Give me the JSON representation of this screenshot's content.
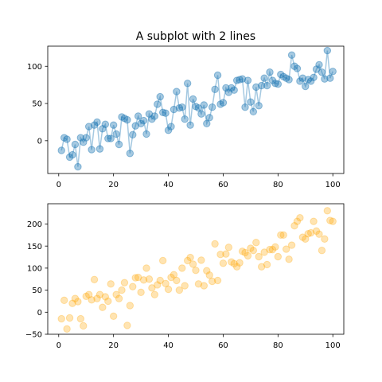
{
  "chart_data": [
    {
      "type": "line",
      "title": "A subplot with 2 lines",
      "xlabel": "",
      "ylabel": "",
      "xlim": [
        -4,
        104
      ],
      "ylim": [
        -44,
        127
      ],
      "xticks": [
        0,
        20,
        40,
        60,
        80,
        100
      ],
      "yticks": [
        0,
        50,
        100
      ],
      "grid": false,
      "color": "#1f77b4",
      "marker": "circle",
      "x": [
        1,
        2,
        3,
        4,
        5,
        6,
        7,
        8,
        9,
        10,
        11,
        12,
        13,
        14,
        15,
        16,
        17,
        18,
        19,
        20,
        21,
        22,
        23,
        24,
        25,
        26,
        27,
        28,
        29,
        30,
        31,
        32,
        33,
        34,
        35,
        36,
        37,
        38,
        39,
        40,
        41,
        42,
        43,
        44,
        45,
        46,
        47,
        48,
        49,
        50,
        51,
        52,
        53,
        54,
        55,
        56,
        57,
        58,
        59,
        60,
        61,
        62,
        63,
        64,
        65,
        66,
        67,
        68,
        69,
        70,
        71,
        72,
        73,
        74,
        75,
        76,
        77,
        78,
        79,
        80,
        81,
        82,
        83,
        84,
        85,
        86,
        87,
        88,
        89,
        90,
        91,
        92,
        93,
        94,
        95,
        96,
        97,
        98,
        99,
        100
      ],
      "y": [
        -13,
        4,
        2,
        -22,
        -19,
        -5,
        -35,
        4,
        -2,
        4,
        19,
        -12,
        21,
        25,
        -11,
        16,
        22,
        3,
        3,
        21,
        9,
        -5,
        32,
        30,
        28,
        -17,
        8,
        20,
        33,
        23,
        27,
        9,
        36,
        29,
        33,
        49,
        59,
        38,
        37,
        14,
        19,
        42,
        66,
        44,
        45,
        29,
        77,
        21,
        56,
        46,
        44,
        36,
        48,
        23,
        31,
        45,
        69,
        88,
        49,
        51,
        71,
        65,
        71,
        68,
        81,
        82,
        83,
        45,
        81,
        52,
        39,
        72,
        47,
        74,
        84,
        74,
        92,
        81,
        77,
        76,
        89,
        86,
        84,
        82,
        115,
        100,
        97,
        80,
        84,
        73,
        82,
        80,
        85,
        96,
        102,
        92,
        83,
        121,
        84,
        93
      ]
    },
    {
      "type": "scatter",
      "title": "",
      "xlabel": "",
      "ylabel": "",
      "xlim": [
        -4,
        104
      ],
      "ylim": [
        -50,
        246
      ],
      "xticks": [
        0,
        20,
        40,
        60,
        80,
        100
      ],
      "yticks": [
        -50,
        0,
        50,
        100,
        150,
        200
      ],
      "grid": false,
      "color": "#ffa500",
      "marker": "circle",
      "x": [
        1,
        2,
        3,
        4,
        5,
        6,
        7,
        8,
        9,
        10,
        11,
        12,
        13,
        14,
        15,
        16,
        17,
        18,
        19,
        20,
        21,
        22,
        23,
        24,
        25,
        26,
        27,
        28,
        29,
        30,
        31,
        32,
        33,
        34,
        35,
        36,
        37,
        38,
        39,
        40,
        41,
        42,
        43,
        44,
        45,
        46,
        47,
        48,
        49,
        50,
        51,
        52,
        53,
        54,
        55,
        56,
        57,
        58,
        59,
        60,
        61,
        62,
        63,
        64,
        65,
        66,
        67,
        68,
        69,
        70,
        71,
        72,
        73,
        74,
        75,
        76,
        77,
        78,
        79,
        80,
        81,
        82,
        83,
        84,
        85,
        86,
        87,
        88,
        89,
        90,
        91,
        92,
        93,
        94,
        95,
        96,
        97,
        98,
        99,
        100
      ],
      "y": [
        -15,
        27,
        -38,
        -13,
        20,
        31,
        24,
        -15,
        -31,
        36,
        40,
        28,
        74,
        31,
        40,
        11,
        35,
        25,
        64,
        -9,
        40,
        31,
        50,
        67,
        -30,
        15,
        58,
        78,
        79,
        45,
        73,
        100,
        75,
        55,
        40,
        62,
        72,
        117,
        65,
        52,
        79,
        85,
        72,
        50,
        100,
        60,
        117,
        124,
        109,
        95,
        64,
        118,
        60,
        94,
        84,
        70,
        155,
        72,
        131,
        111,
        132,
        147,
        114,
        110,
        103,
        112,
        138,
        135,
        128,
        145,
        140,
        158,
        126,
        103,
        136,
        108,
        142,
        142,
        148,
        126,
        175,
        175,
        143,
        120,
        152,
        196,
        206,
        214,
        170,
        166,
        178,
        180,
        206,
        184,
        177,
        140,
        166,
        230,
        208,
        206
      ]
    }
  ]
}
